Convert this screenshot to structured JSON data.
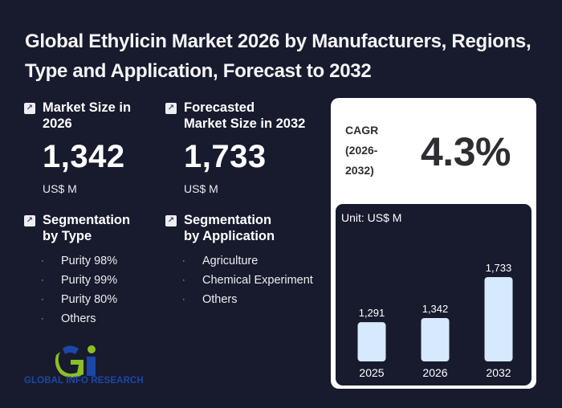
{
  "title": "Global Ethylicin Market 2026 by Manufacturers, Regions, Type and Application, Forecast to 2032",
  "market_size": {
    "icon": "arrow-up-right-icon",
    "label_line1": "Market Size in",
    "label_line2": "2026",
    "value": "1,342",
    "unit": "US$ M"
  },
  "forecast": {
    "icon": "arrow-up-right-icon",
    "label_line1": "Forecasted",
    "label_line2": "Market Size in 2032",
    "value": "1,733",
    "unit": "US$ M"
  },
  "segmentation_type": {
    "icon": "arrow-up-right-icon",
    "label_line1": "Segmentation",
    "label_line2": "by Type",
    "items": [
      "Purity 98%",
      "Purity 99%",
      "Purity 80%",
      "Others"
    ]
  },
  "segmentation_application": {
    "icon": "arrow-up-right-icon",
    "label_line1": "Segmentation",
    "label_line2": "by Application",
    "items": [
      "Agriculture",
      "Chemical Experiment",
      "Others"
    ]
  },
  "cagr": {
    "label_line1": "CAGR",
    "label_line2": "(2026-",
    "label_line3": "2032)",
    "value": "4.3%"
  },
  "logo": {
    "text": "GLOBAL INFO RESEARCH",
    "colors": {
      "blue": "#1c46a8",
      "green": "#8cbf26"
    }
  },
  "colors": {
    "background": "#181b2e",
    "bar": "#d6e9fd",
    "card": "#ffffff"
  },
  "chart_data": {
    "type": "bar",
    "title": "",
    "unit_label": "Unit: US$ M",
    "categories": [
      "2025",
      "2026",
      "2032"
    ],
    "values": [
      1291,
      1342,
      1733
    ],
    "value_labels": [
      "1,291",
      "1,342",
      "1,733"
    ],
    "xlabel": "",
    "ylabel": "",
    "grid": false,
    "legend": "none"
  }
}
